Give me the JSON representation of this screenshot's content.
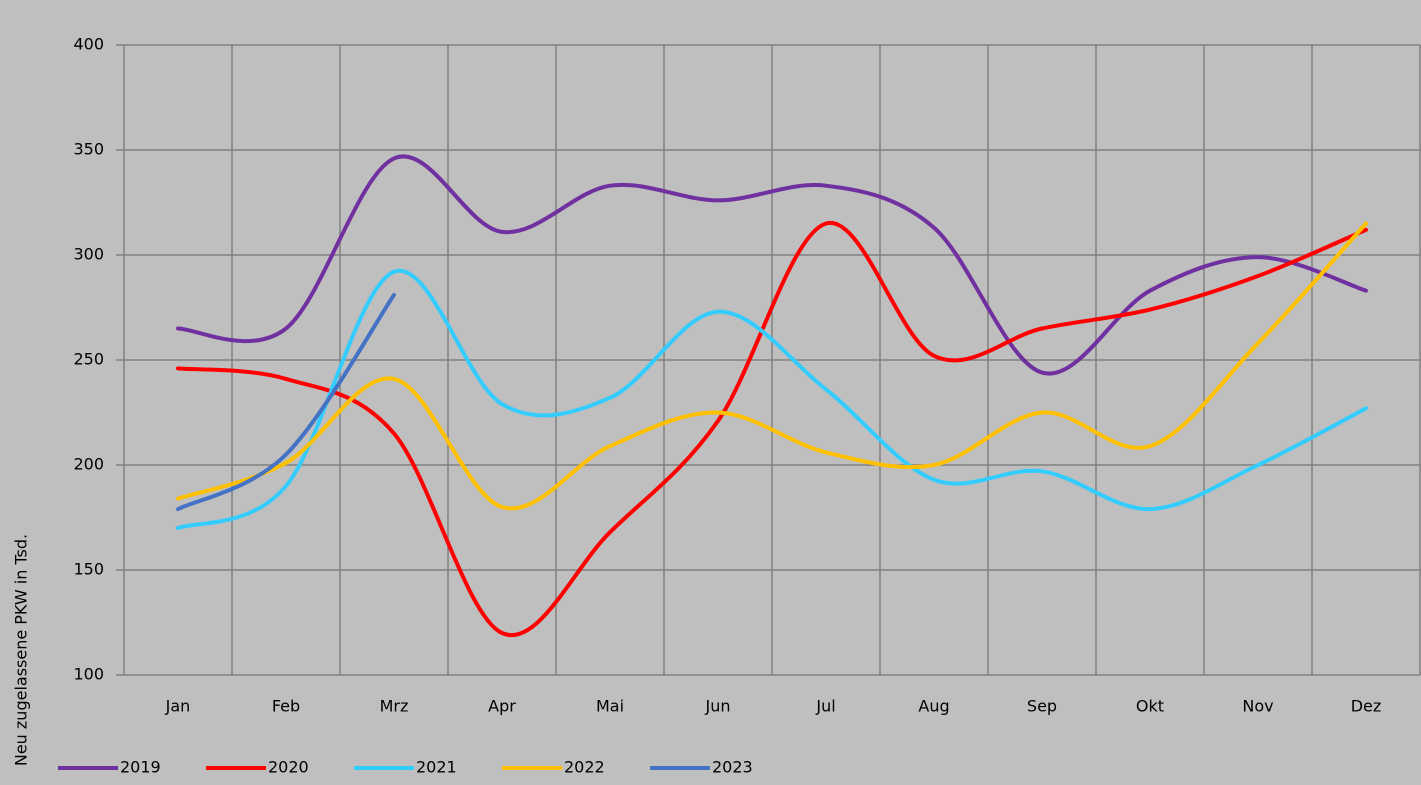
{
  "chart_data": {
    "type": "line",
    "y_label": "Neu zugelassene PKW in Tsd.",
    "categories": [
      "Jan",
      "Feb",
      "Mrz",
      "Apr",
      "Mai",
      "Jun",
      "Jul",
      "Aug",
      "Sep",
      "Okt",
      "Nov",
      "Dez"
    ],
    "series": [
      {
        "name": "2019",
        "color": "#7030a0",
        "values": [
          265,
          265,
          346,
          311,
          333,
          326,
          333,
          313,
          244,
          283,
          299,
          283
        ]
      },
      {
        "name": "2020",
        "color": "#ff0000",
        "values": [
          246,
          241,
          215,
          120,
          168,
          221,
          315,
          252,
          265,
          274,
          290,
          312
        ]
      },
      {
        "name": "2021",
        "color": "#33ccff",
        "values": [
          170,
          190,
          292,
          229,
          232,
          273,
          236,
          193,
          197,
          179,
          200,
          227
        ]
      },
      {
        "name": "2022",
        "color": "#ffc000",
        "values": [
          184,
          201,
          241,
          180,
          209,
          225,
          206,
          200,
          225,
          209,
          258,
          315
        ]
      },
      {
        "name": "2023",
        "color": "#4472c4",
        "values": [
          179,
          205,
          281,
          null,
          null,
          null,
          null,
          null,
          null,
          null,
          null,
          null
        ]
      }
    ],
    "ylim": [
      100,
      400
    ],
    "yticks": [
      100,
      150,
      200,
      250,
      300,
      350,
      400
    ],
    "grid": true,
    "smooth": true,
    "legend": "bottom"
  }
}
